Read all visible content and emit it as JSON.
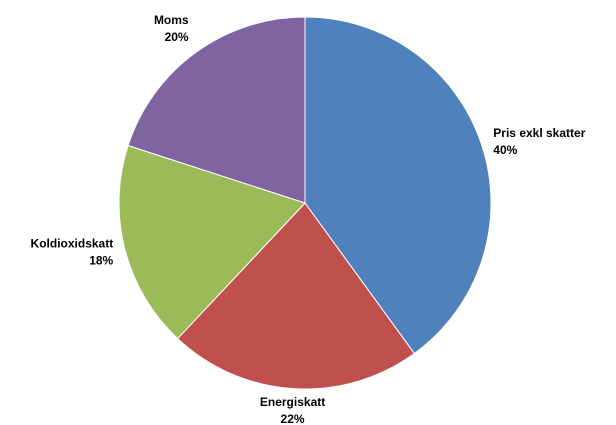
{
  "chart_data": {
    "type": "pie",
    "categories": [
      "Pris exkl skatter",
      "Energiskatt",
      "Koldioxidskatt",
      "Moms"
    ],
    "values": [
      40,
      22,
      18,
      20
    ],
    "value_labels": [
      "40%",
      "22%",
      "18%",
      "20%"
    ],
    "colors": [
      "#4f81bd",
      "#c0504d",
      "#9bbb59",
      "#8064a2"
    ]
  }
}
